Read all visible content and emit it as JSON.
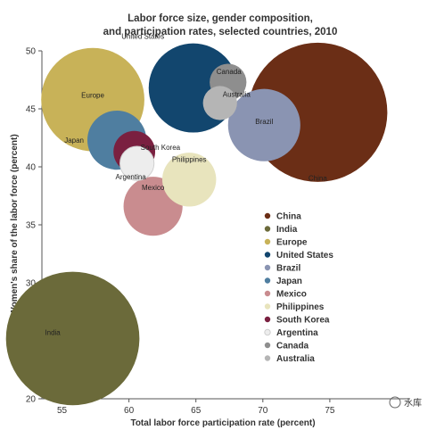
{
  "chart_data": {
    "type": "scatter",
    "title_lines": [
      "Labor force size, gender composition,",
      "and participation rates, selected countries, 2010"
    ],
    "xlabel": "Total labor force participation rate (percent)",
    "ylabel": "Women's share of the labor force (percent)",
    "xlim": [
      53.5,
      81.0
    ],
    "ylim": [
      20,
      50
    ],
    "xticks": [
      55,
      60,
      65,
      70,
      75
    ],
    "yticks": [
      20,
      25,
      30,
      35,
      40,
      45,
      50
    ],
    "grid": false,
    "legend_position": "right",
    "series": [
      {
        "name": "China",
        "x": 74.1,
        "y": 44.7,
        "color": "#6b2e16",
        "label_offset": "below"
      },
      {
        "name": "India",
        "x": 55.8,
        "y": 25.2,
        "color": "#6b6a3a",
        "label_offset": "left"
      },
      {
        "name": "Europe",
        "x": 57.3,
        "y": 45.8,
        "color": "#c8b258",
        "label_offset": "center"
      },
      {
        "name": "United States",
        "x": 64.8,
        "y": 46.8,
        "color": "#12466e",
        "label_offset": "top-left"
      },
      {
        "name": "Brazil",
        "x": 70.1,
        "y": 43.6,
        "color": "#8a94b2",
        "label_offset": "center"
      },
      {
        "name": "Japan",
        "x": 59.1,
        "y": 42.3,
        "color": "#4f7ea0",
        "label_offset": "left"
      },
      {
        "name": "Mexico",
        "x": 61.8,
        "y": 36.6,
        "color": "#c98c8f",
        "label_offset": "top"
      },
      {
        "name": "Philippines",
        "x": 64.5,
        "y": 38.9,
        "color": "#e8e4bd",
        "label_offset": "top"
      },
      {
        "name": "South Korea",
        "x": 60.4,
        "y": 41.3,
        "color": "#7a2040",
        "label_offset": "right"
      },
      {
        "name": "Argentina",
        "x": 60.6,
        "y": 40.3,
        "color": "#ededed",
        "label_offset": "below"
      },
      {
        "name": "Canada",
        "x": 67.4,
        "y": 47.3,
        "color": "#8e8e8e",
        "label_offset": "top"
      },
      {
        "name": "Australia",
        "x": 66.8,
        "y": 45.5,
        "color": "#b5b5b5",
        "label_offset": "right"
      }
    ],
    "sizes": {
      "China": 1.0,
      "India": 0.92,
      "Europe": 0.55,
      "United States": 0.41,
      "Brazil": 0.27,
      "Japan": 0.18,
      "Mexico": 0.18,
      "Philippines": 0.15,
      "South Korea": 0.09,
      "Argentina": 0.06,
      "Canada": 0.07,
      "Australia": 0.06
    }
  },
  "watermark": "水库"
}
